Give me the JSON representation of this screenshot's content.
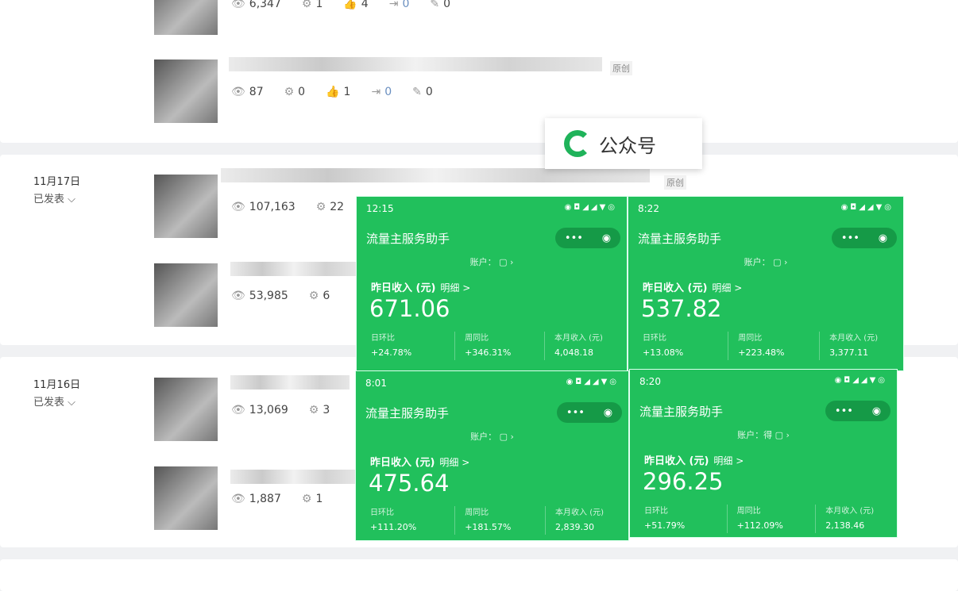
{
  "rows": [
    {
      "views": "6,347",
      "shares": "1",
      "likes": "4",
      "forwards": "0",
      "edits": "0"
    },
    {
      "views": "87",
      "shares": "0",
      "likes": "1",
      "forwards": "0",
      "edits": "0",
      "badge": "原创"
    },
    {
      "views": "107,163",
      "shares": "22",
      "badge": "原创"
    },
    {
      "views": "53,985",
      "shares": "6"
    },
    {
      "views": "13,069",
      "shares": "3"
    },
    {
      "views": "1,887",
      "shares": "1"
    }
  ],
  "sections": [
    {
      "date": "11月17日",
      "status": "已发表"
    },
    {
      "date": "11月16日",
      "status": "已发表"
    }
  ],
  "gzh_label": "公众号",
  "phones": [
    {
      "time": "12:15",
      "title": "流量主服务助手",
      "account": "账户：",
      "yesterday_label": "昨日收入 (元)",
      "detail": "明细 >",
      "income": "671.06",
      "dod_label": "日环比",
      "dod": "+24.78%",
      "wow_label": "周同比",
      "wow": "+346.31%",
      "month_label": "本月收入 (元)",
      "month": "4,048.18"
    },
    {
      "time": "8:22",
      "title": "流量主服务助手",
      "account": "账户：",
      "yesterday_label": "昨日收入 (元)",
      "detail": "明细 >",
      "income": "537.82",
      "dod_label": "日环比",
      "dod": "+13.08%",
      "wow_label": "周同比",
      "wow": "+223.48%",
      "month_label": "本月收入 (元)",
      "month": "3,377.11"
    },
    {
      "time": "8:01",
      "title": "流量主服务助手",
      "account": "账户：",
      "yesterday_label": "昨日收入 (元)",
      "detail": "明细 >",
      "income": "475.64",
      "dod_label": "日环比",
      "dod": "+111.20%",
      "wow_label": "周同比",
      "wow": "+181.57%",
      "month_label": "本月收入 (元)",
      "month": "2,839.30"
    },
    {
      "time": "8:20",
      "title": "流量主服务助手",
      "account": "账户：得",
      "yesterday_label": "昨日收入 (元)",
      "detail": "明细 >",
      "income": "296.25",
      "dod_label": "日环比",
      "dod": "+51.79%",
      "wow_label": "周同比",
      "wow": "+112.09%",
      "month_label": "本月收入 (元)",
      "month": "2,138.46"
    }
  ],
  "colors": {
    "phone_green": "#21c05c",
    "capsule": "#159a47"
  }
}
